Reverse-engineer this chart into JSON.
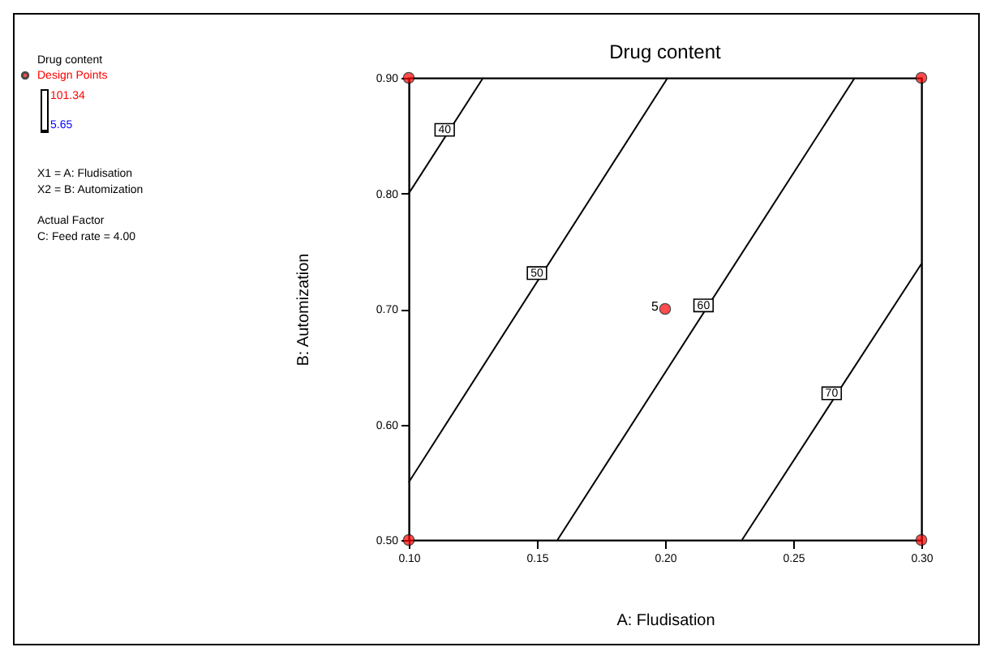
{
  "chart_data": {
    "type": "line",
    "title": "Drug content",
    "xlabel": "A: Fludisation",
    "ylabel": "B: Automization",
    "xlim": [
      0.1,
      0.3
    ],
    "ylim": [
      0.5,
      0.9
    ],
    "xticks": [
      {
        "value": 0.1,
        "label": "0.10"
      },
      {
        "value": 0.15,
        "label": "0.15"
      },
      {
        "value": 0.2,
        "label": "0.20"
      },
      {
        "value": 0.25,
        "label": "0.25"
      },
      {
        "value": 0.3,
        "label": "0.30"
      }
    ],
    "yticks": [
      {
        "value": 0.5,
        "label": "0.50"
      },
      {
        "value": 0.6,
        "label": "0.60"
      },
      {
        "value": 0.7,
        "label": "0.70"
      },
      {
        "value": 0.8,
        "label": "0.80"
      },
      {
        "value": 0.9,
        "label": "0.90"
      }
    ],
    "grid": false,
    "legend": "top left",
    "marker": "none",
    "line_style": "solid",
    "series": [
      {
        "color": "#000000",
        "x": [
          0.1,
          0.129
        ],
        "values": [
          0.8,
          0.9
        ]
      },
      {
        "color": "#000000",
        "x": [
          0.1,
          0.201
        ],
        "values": [
          0.55,
          0.9
        ]
      },
      {
        "color": "#000000",
        "x": [
          0.158,
          0.274
        ],
        "values": [
          0.5,
          0.9
        ]
      },
      {
        "color": "#000000",
        "x": [
          0.23,
          0.3
        ],
        "values": [
          0.5,
          0.739
        ]
      },
      {
        "type": "scatter",
        "name": "Design Points",
        "color": "#ff0000",
        "marker": "circle",
        "x": [
          0.1,
          0.1,
          0.3,
          0.3,
          0.2
        ],
        "values": [
          0.5,
          0.9,
          0.5,
          0.9,
          0.7
        ]
      }
    ],
    "annotations": [
      {
        "text": "40",
        "x": 0.114,
        "y": 0.855
      },
      {
        "text": "50",
        "x": 0.15,
        "y": 0.731
      },
      {
        "text": "60",
        "x": 0.215,
        "y": 0.703
      },
      {
        "text": "70",
        "x": 0.265,
        "y": 0.627
      },
      {
        "text": "5",
        "x": 0.2,
        "y": 0.7
      },
      "101.34",
      "5.65",
      "X1 = A: Fludisation",
      "X2 = B: Automization",
      "Actual Factor",
      "C: Feed rate = 4.00"
    ]
  }
}
